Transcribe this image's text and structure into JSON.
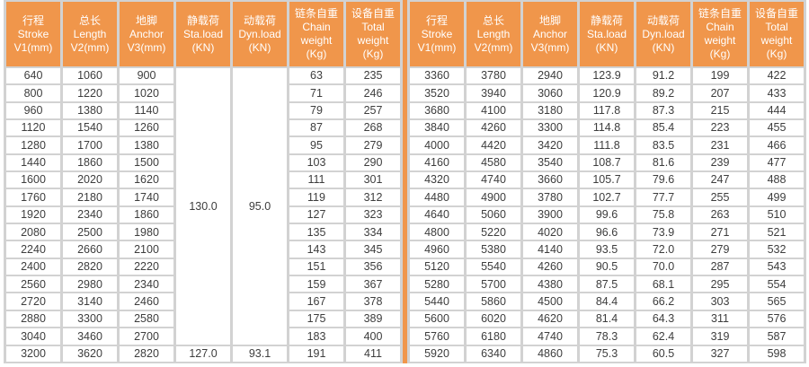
{
  "sheet": {
    "colors": {
      "header_bg": "#F0964B",
      "header_text": "#FFFFFF",
      "grid_bg": "#D2D2D2",
      "cell_bg": "#FFFFFF",
      "cell_text": "#3D3D3D",
      "divider": "#F0964B"
    },
    "tables": [
      {
        "id": "left",
        "columns": [
          {
            "id": "stroke",
            "lines": [
              "行程",
              "Stroke",
              "V1(mm)"
            ]
          },
          {
            "id": "length",
            "lines": [
              "总长",
              "Length",
              "V2(mm)"
            ]
          },
          {
            "id": "anchor",
            "lines": [
              "地脚",
              "Anchor",
              "V3(mm)"
            ]
          },
          {
            "id": "static-load",
            "lines": [
              "静载荷",
              "Sta.load",
              "(KN)"
            ]
          },
          {
            "id": "dynamic-load",
            "lines": [
              "动载荷",
              "Dyn.load",
              "(KN)"
            ]
          },
          {
            "id": "chain-weight",
            "lines": [
              "链条自重",
              "Chain",
              "weight",
              "(Kg)"
            ]
          },
          {
            "id": "total-weight",
            "lines": [
              "设备自重",
              "Total",
              "weight",
              "(Kg)"
            ]
          }
        ],
        "merges": [
          {
            "row": 0,
            "col": 3,
            "rowspan": 16
          },
          {
            "row": 0,
            "col": 4,
            "rowspan": 16
          }
        ],
        "rows": [
          [
            "640",
            "1060",
            "900",
            "130.0",
            "95.0",
            "63",
            "235"
          ],
          [
            "800",
            "1220",
            "1020",
            null,
            null,
            "71",
            "246"
          ],
          [
            "960",
            "1380",
            "1140",
            null,
            null,
            "79",
            "257"
          ],
          [
            "1120",
            "1540",
            "1260",
            null,
            null,
            "87",
            "268"
          ],
          [
            "1280",
            "1700",
            "1380",
            null,
            null,
            "95",
            "279"
          ],
          [
            "1440",
            "1860",
            "1500",
            null,
            null,
            "103",
            "290"
          ],
          [
            "1600",
            "2020",
            "1620",
            null,
            null,
            "111",
            "301"
          ],
          [
            "1760",
            "2180",
            "1740",
            null,
            null,
            "119",
            "312"
          ],
          [
            "1920",
            "2340",
            "1860",
            null,
            null,
            "127",
            "323"
          ],
          [
            "2080",
            "2500",
            "1980",
            null,
            null,
            "135",
            "334"
          ],
          [
            "2240",
            "2660",
            "2100",
            null,
            null,
            "143",
            "345"
          ],
          [
            "2400",
            "2820",
            "2220",
            null,
            null,
            "151",
            "356"
          ],
          [
            "2560",
            "2980",
            "2340",
            null,
            null,
            "159",
            "367"
          ],
          [
            "2720",
            "3140",
            "2460",
            null,
            null,
            "167",
            "378"
          ],
          [
            "2880",
            "3300",
            "2580",
            null,
            null,
            "175",
            "389"
          ],
          [
            "3040",
            "3460",
            "2700",
            null,
            null,
            "183",
            "400"
          ],
          [
            "3200",
            "3620",
            "2820",
            "127.0",
            "93.1",
            "191",
            "411"
          ]
        ]
      },
      {
        "id": "right",
        "columns": [
          {
            "id": "stroke",
            "lines": [
              "行程",
              "Stroke",
              "V1(mm)"
            ]
          },
          {
            "id": "length",
            "lines": [
              "总长",
              "Length",
              "V2(mm)"
            ]
          },
          {
            "id": "anchor",
            "lines": [
              "地脚",
              "Anchor",
              "V3(mm)"
            ]
          },
          {
            "id": "static-load",
            "lines": [
              "静载荷",
              "Sta.load",
              "(KN)"
            ]
          },
          {
            "id": "dynamic-load",
            "lines": [
              "动载荷",
              "Dyn.load",
              "(KN)"
            ]
          },
          {
            "id": "chain-weight",
            "lines": [
              "链条自重",
              "Chain",
              "weight",
              "(Kg)"
            ]
          },
          {
            "id": "total-weight",
            "lines": [
              "设备自重",
              "Total",
              "weight",
              "(Kg)"
            ]
          }
        ],
        "merges": [],
        "rows": [
          [
            "3360",
            "3780",
            "2940",
            "123.9",
            "91.2",
            "199",
            "422"
          ],
          [
            "3520",
            "3940",
            "3060",
            "120.9",
            "89.2",
            "207",
            "433"
          ],
          [
            "3680",
            "4100",
            "3180",
            "117.8",
            "87.3",
            "215",
            "444"
          ],
          [
            "3840",
            "4260",
            "3300",
            "114.8",
            "85.4",
            "223",
            "455"
          ],
          [
            "4000",
            "4420",
            "3420",
            "111.8",
            "83.5",
            "231",
            "466"
          ],
          [
            "4160",
            "4580",
            "3540",
            "108.7",
            "81.6",
            "239",
            "477"
          ],
          [
            "4320",
            "4740",
            "3660",
            "105.7",
            "79.6",
            "247",
            "488"
          ],
          [
            "4480",
            "4900",
            "3780",
            "102.7",
            "77.7",
            "255",
            "499"
          ],
          [
            "4640",
            "5060",
            "3900",
            "99.6",
            "75.8",
            "263",
            "510"
          ],
          [
            "4800",
            "5220",
            "4020",
            "96.6",
            "73.9",
            "271",
            "521"
          ],
          [
            "4960",
            "5380",
            "4140",
            "93.5",
            "72.0",
            "279",
            "532"
          ],
          [
            "5120",
            "5540",
            "4260",
            "90.5",
            "70.0",
            "287",
            "543"
          ],
          [
            "5280",
            "5700",
            "4380",
            "87.5",
            "68.1",
            "295",
            "554"
          ],
          [
            "5440",
            "5860",
            "4500",
            "84.4",
            "66.2",
            "303",
            "565"
          ],
          [
            "5600",
            "6020",
            "4620",
            "81.4",
            "64.3",
            "311",
            "576"
          ],
          [
            "5760",
            "6180",
            "4740",
            "78.3",
            "62.4",
            "319",
            "587"
          ],
          [
            "5920",
            "6340",
            "4860",
            "75.3",
            "60.5",
            "327",
            "598"
          ]
        ]
      }
    ]
  }
}
